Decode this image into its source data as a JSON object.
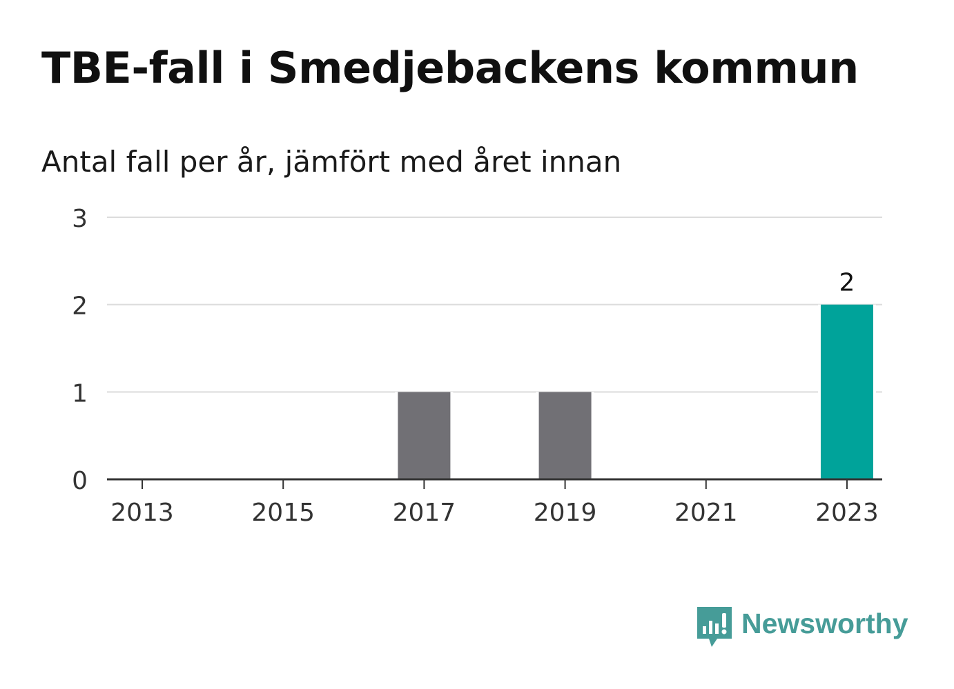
{
  "title": "TBE-fall i Smedjebackens kommun",
  "subtitle": "Antal fall per år, jämfört med året innan",
  "brand": {
    "name": "Newsworthy",
    "icon": "newsworthy-logo-icon",
    "color": "#469c98"
  },
  "chart_data": {
    "type": "bar",
    "categories": [
      "2013",
      "2014",
      "2015",
      "2016",
      "2017",
      "2018",
      "2019",
      "2020",
      "2021",
      "2022",
      "2023"
    ],
    "values": [
      0,
      0,
      0,
      0,
      1,
      0,
      1,
      0,
      0,
      0,
      2
    ],
    "xticks": [
      "2013",
      "2015",
      "2017",
      "2019",
      "2021",
      "2023"
    ],
    "yticks": [
      0,
      1,
      2,
      3
    ],
    "ylim": [
      0,
      3
    ],
    "data_labels": [
      {
        "category": "2023",
        "value": "2"
      }
    ],
    "highlight_category": "2023",
    "colors": {
      "bar": "#717075",
      "highlight": "#00a39a",
      "grid": "#dcdcdc",
      "axis": "#333333"
    },
    "grid": true
  }
}
